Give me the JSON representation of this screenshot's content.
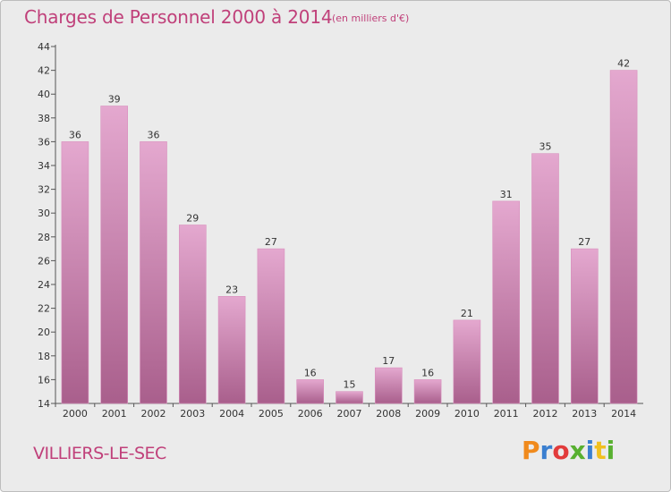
{
  "title": "Charges de Personnel 2000 à 2014",
  "subtitle": "(en milliers d'€)",
  "commune": "VILLIERS-LE-SEC",
  "logo": {
    "text": "Proxiti",
    "letters": [
      "P",
      "r",
      "o",
      "x",
      "i",
      "t",
      "i"
    ],
    "colors": [
      "#f08a1c",
      "#3a7fd0",
      "#e23b3b",
      "#58b030",
      "#3a7fd0",
      "#f0c020",
      "#58b030"
    ]
  },
  "colors": {
    "title": "#c0407a",
    "bar_top": "#e4a8cf",
    "bar_bottom": "#a95f8c",
    "background": "#ebebeb"
  },
  "chart_data": {
    "type": "bar",
    "categories": [
      "2000",
      "2001",
      "2002",
      "2003",
      "2004",
      "2005",
      "2006",
      "2007",
      "2008",
      "2009",
      "2010",
      "2011",
      "2012",
      "2013",
      "2014"
    ],
    "values": [
      36,
      39,
      36,
      29,
      23,
      27,
      16,
      15,
      17,
      16,
      21,
      31,
      35,
      27,
      42
    ],
    "ylim": [
      14,
      44
    ],
    "yticks": [
      14,
      16,
      18,
      20,
      22,
      24,
      26,
      28,
      30,
      32,
      34,
      36,
      38,
      40,
      42,
      44
    ],
    "grid": false,
    "legend": "none"
  }
}
